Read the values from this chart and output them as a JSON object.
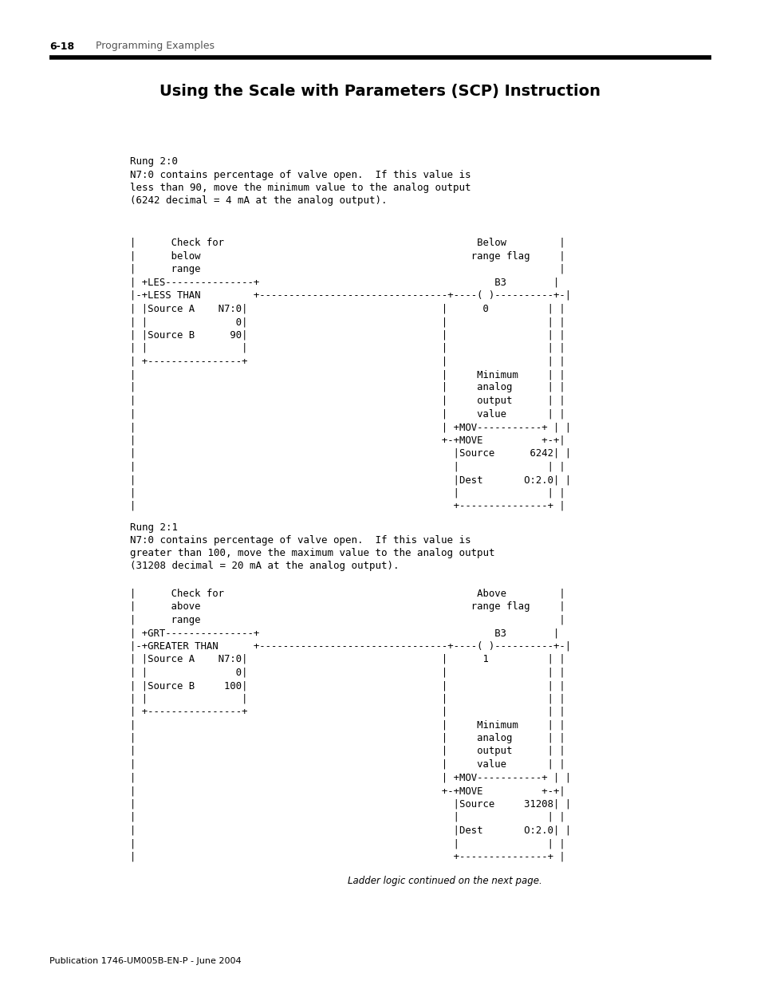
{
  "title": "Using the Scale with Parameters (SCP) Instruction",
  "header_label": "6-18",
  "header_section": "Programming Examples",
  "footer": "Publication 1746-UM005B-EN-P - June 2004",
  "background_color": "#ffffff",
  "rung1_label": "Rung 2:0",
  "rung1_desc": [
    "N7:0 contains percentage of valve open.  If this value is",
    "less than 90, move the minimum value to the analog output",
    "(6242 decimal = 4 mA at the analog output)."
  ],
  "rung1_diagram": [
    "|      Check for                                           Below         |",
    "|      below                                              range flag     |",
    "|      range                                                             |",
    "| +LES---------------+                                        B3        |",
    "|-+LESS THAN         +--------------------------------+----( )----------+-|",
    "| |Source A    N7:0|                                 |      0          | |",
    "| |               0|                                 |                 | |",
    "| |Source B      90|                                 |                 | |",
    "| |                |                                 |                 | |",
    "| +----------------+                                 |                 | |",
    "|                                                    |     Minimum     | |",
    "|                                                    |     analog      | |",
    "|                                                    |     output      | |",
    "|                                                    |     value       | |",
    "|                                                    | +MOV-----------+ | |",
    "|                                                    +-+MOVE          +-+|",
    "|                                                      |Source      6242| |",
    "|                                                      |               | |",
    "|                                                      |Dest       O:2.0| |",
    "|                                                      |               | |",
    "|                                                      +---------------+ |"
  ],
  "rung2_label": "Rung 2:1",
  "rung2_desc": [
    "N7:0 contains percentage of valve open.  If this value is",
    "greater than 100, move the maximum value to the analog output",
    "(31208 decimal = 20 mA at the analog output)."
  ],
  "rung2_diagram": [
    "|      Check for                                           Above         |",
    "|      above                                              range flag     |",
    "|      range                                                             |",
    "| +GRT---------------+                                        B3        |",
    "|-+GREATER THAN      +--------------------------------+----( )----------+-|",
    "| |Source A    N7:0|                                 |      1          | |",
    "| |               0|                                 |                 | |",
    "| |Source B     100|                                 |                 | |",
    "| |                |                                 |                 | |",
    "| +----------------+                                 |                 | |",
    "|                                                    |     Minimum     | |",
    "|                                                    |     analog      | |",
    "|                                                    |     output      | |",
    "|                                                    |     value       | |",
    "|                                                    | +MOV-----------+ | |",
    "|                                                    +-+MOVE          +-+|",
    "|                                                      |Source     31208| |",
    "|                                                      |               | |",
    "|                                                      |Dest       O:2.0| |",
    "|                                                      |               | |",
    "|                                                      +---------------+ |"
  ],
  "footnote": "Ladder logic continued on the next page."
}
